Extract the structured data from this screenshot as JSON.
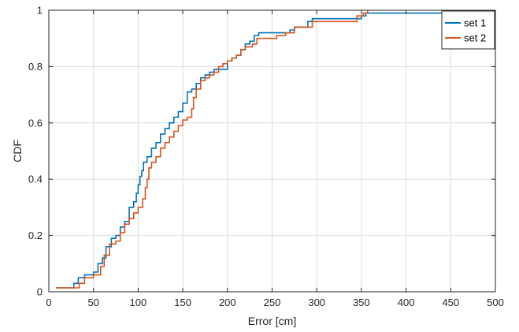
{
  "chart_data": {
    "type": "line",
    "xlabel": "Error [cm]",
    "ylabel": "CDF",
    "xlim": [
      0,
      500
    ],
    "ylim": [
      0,
      1
    ],
    "xticks": [
      0,
      50,
      100,
      150,
      200,
      250,
      300,
      350,
      400,
      450,
      500
    ],
    "yticks": [
      0,
      0.2,
      0.4,
      0.6,
      0.8,
      1
    ],
    "grid": true,
    "legend_position": "top-right",
    "series": [
      {
        "name": "set 1",
        "color": "#0072BD",
        "x": [
          8,
          28,
          33,
          40,
          50,
          55,
          60,
          64,
          70,
          75,
          80,
          85,
          90,
          95,
          98,
          100,
          102,
          104,
          106,
          110,
          115,
          120,
          125,
          130,
          135,
          140,
          145,
          150,
          155,
          160,
          165,
          170,
          175,
          180,
          185,
          190,
          200,
          205,
          210,
          215,
          220,
          225,
          230,
          235,
          270,
          275,
          290,
          295,
          350,
          355,
          360,
          475
        ],
        "y": [
          0.014,
          0.03,
          0.05,
          0.06,
          0.07,
          0.1,
          0.12,
          0.16,
          0.19,
          0.2,
          0.23,
          0.25,
          0.3,
          0.32,
          0.35,
          0.38,
          0.41,
          0.43,
          0.46,
          0.48,
          0.51,
          0.53,
          0.56,
          0.58,
          0.6,
          0.62,
          0.64,
          0.67,
          0.71,
          0.72,
          0.74,
          0.76,
          0.77,
          0.78,
          0.79,
          0.79,
          0.82,
          0.83,
          0.84,
          0.86,
          0.88,
          0.89,
          0.91,
          0.92,
          0.93,
          0.94,
          0.96,
          0.97,
          0.98,
          0.99,
          0.99,
          1.0
        ]
      },
      {
        "name": "set 2",
        "color": "#D95319",
        "x": [
          8,
          34,
          40,
          50,
          58,
          62,
          68,
          75,
          80,
          85,
          90,
          95,
          100,
          105,
          108,
          110,
          112,
          115,
          120,
          125,
          130,
          135,
          140,
          145,
          150,
          155,
          160,
          162,
          165,
          170,
          175,
          180,
          185,
          190,
          195,
          200,
          205,
          210,
          215,
          220,
          228,
          233,
          255,
          265,
          275,
          295,
          345,
          352,
          357
        ],
        "y": [
          0.014,
          0.03,
          0.05,
          0.06,
          0.09,
          0.13,
          0.17,
          0.18,
          0.21,
          0.24,
          0.26,
          0.28,
          0.3,
          0.33,
          0.37,
          0.4,
          0.44,
          0.46,
          0.48,
          0.51,
          0.53,
          0.55,
          0.57,
          0.59,
          0.61,
          0.62,
          0.65,
          0.69,
          0.72,
          0.75,
          0.76,
          0.77,
          0.78,
          0.8,
          0.81,
          0.82,
          0.83,
          0.84,
          0.86,
          0.87,
          0.88,
          0.9,
          0.91,
          0.92,
          0.94,
          0.96,
          0.98,
          0.99,
          1.0
        ]
      }
    ]
  }
}
